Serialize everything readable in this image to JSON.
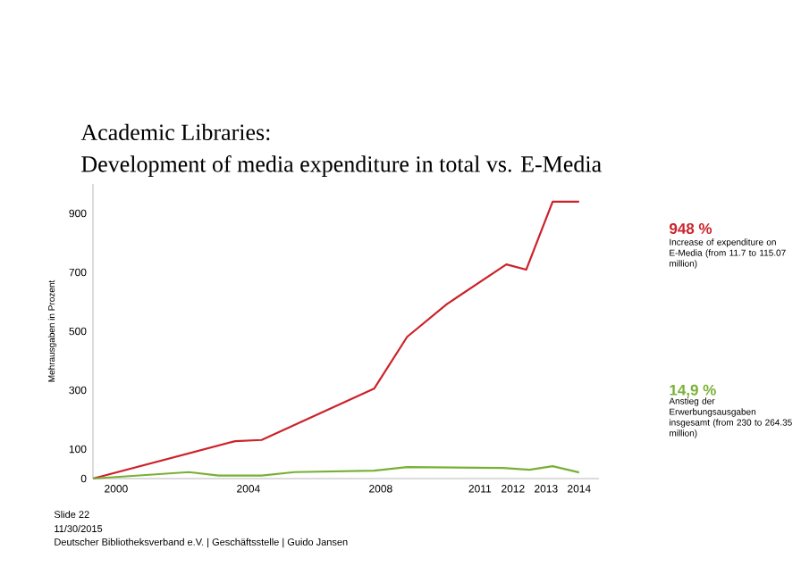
{
  "chart_data": {
    "type": "line",
    "title": "Academic Libraries:",
    "subtitle": "Development of media expenditure in total vs. E-Media",
    "ylabel": "Mehrausgaben in Prozent",
    "xlim": [
      1999.3,
      2014.6
    ],
    "xticks": [
      2000,
      2004,
      2008,
      2011,
      2012,
      2013,
      2014
    ],
    "ylim": [
      0,
      1000
    ],
    "yticks": [
      0,
      100,
      300,
      500,
      700,
      900
    ],
    "series": [
      {
        "color": "#cc2229",
        "x": [
          1999.3,
          2003.6,
          2004.4,
          2007.8,
          2008.8,
          2010.0,
          2011.8,
          2012.4,
          2013.2,
          2014.0
        ],
        "values": [
          0,
          127,
          131,
          305,
          481,
          592,
          727,
          709,
          940,
          940
        ]
      },
      {
        "color": "#78b035",
        "x": [
          1999.3,
          2002.2,
          2003.1,
          2004.4,
          2005.4,
          2007.8,
          2008.8,
          2011.7,
          2012.5,
          2013.2,
          2014.0
        ],
        "values": [
          0,
          22,
          10,
          10,
          22,
          27,
          39,
          36,
          30,
          42,
          21
        ]
      }
    ],
    "marker": "none",
    "line_style": "solid",
    "grid": false,
    "annotations": [
      "948 %",
      "Increase of expenditure on E-Media (from 11.7 to 115.07 million)",
      "14,9 %",
      "Anstieg der Erwerbungsausgaben insgesamt (from 230 to 264.35 million)",
      "Slide 22",
      "11/30/2015",
      "Deutscher Bibliotheksverband e.V. | Geschäftsstelle | Guido Jansen"
    ]
  }
}
